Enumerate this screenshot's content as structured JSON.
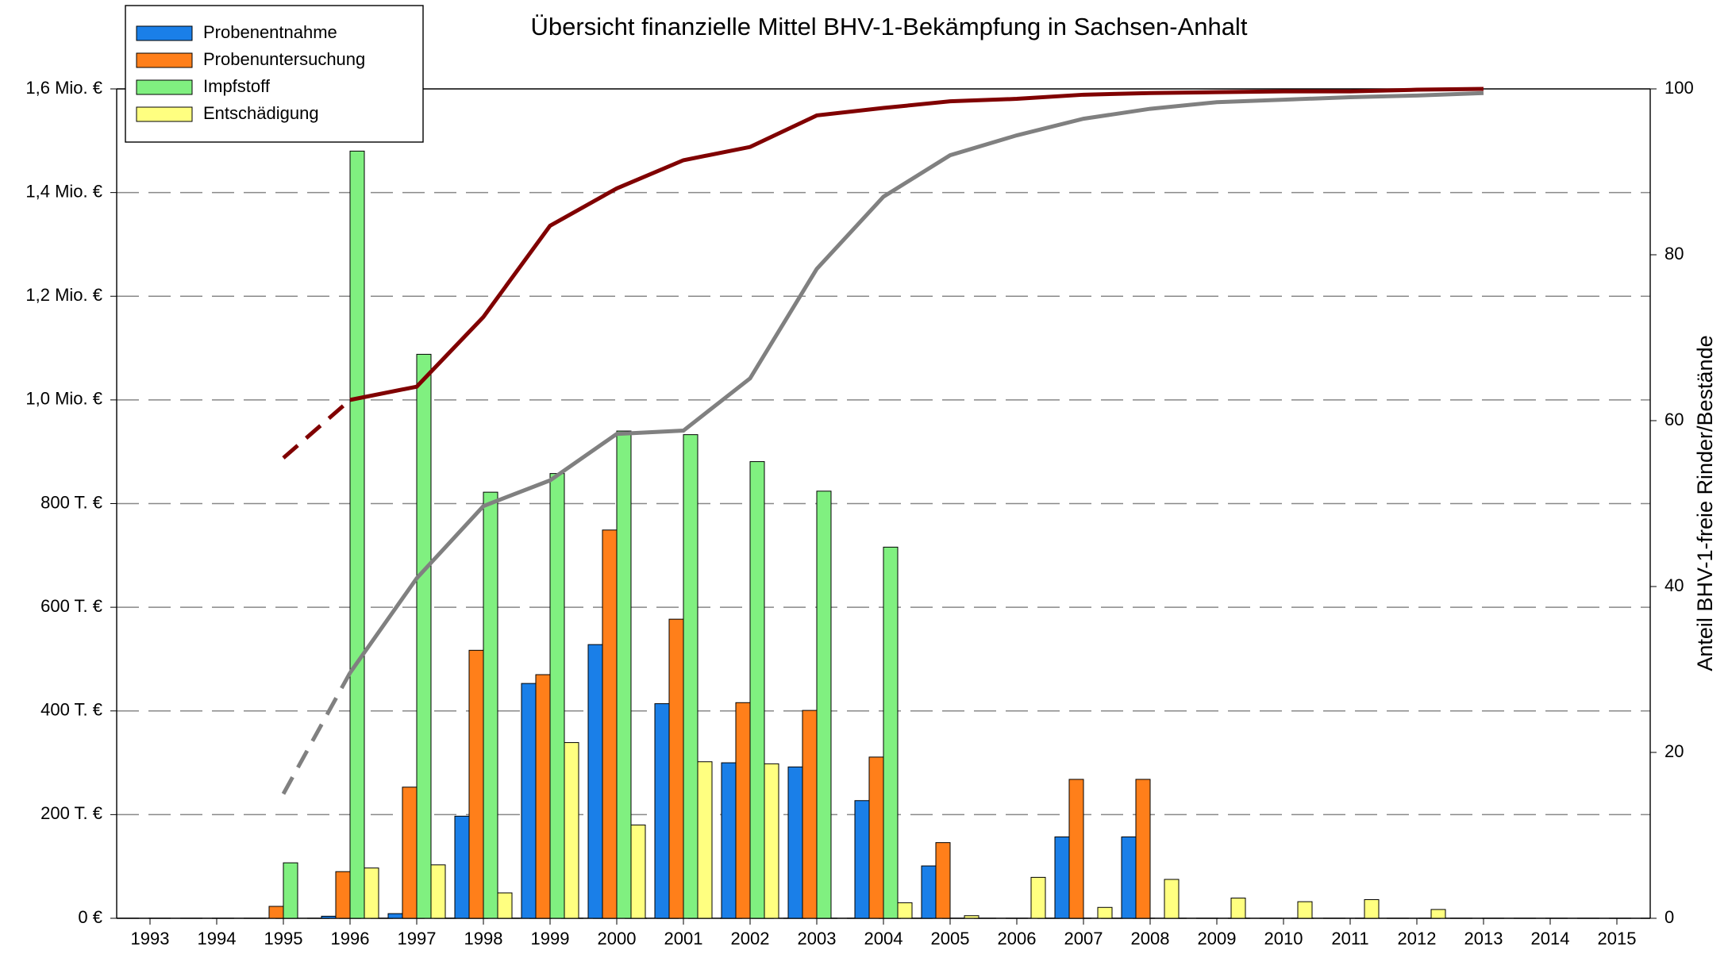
{
  "chart_data": {
    "type": "bar",
    "title": "Übersicht finanzielle Mittel BHV-1-Bekämpfung in Sachsen-Anhalt",
    "y2_label": "Anteil BHV-1-freie Rinder/Bestände",
    "categories": [
      "1993",
      "1994",
      "1995",
      "1996",
      "1997",
      "1998",
      "1999",
      "2000",
      "2001",
      "2002",
      "2003",
      "2004",
      "2005",
      "2006",
      "2007",
      "2008",
      "2009",
      "2010",
      "2011",
      "2012",
      "2013",
      "2014",
      "2015"
    ],
    "series": [
      {
        "name": "Probenentnahme",
        "color": "#1a7fe8",
        "values": [
          0,
          0,
          0,
          4000,
          9000,
          197000,
          453000,
          528000,
          414000,
          300000,
          292000,
          227000,
          101000,
          0,
          157000,
          157000,
          0,
          0,
          0,
          0,
          0,
          null,
          null
        ]
      },
      {
        "name": "Probenuntersuchung",
        "color": "#ff7f1a",
        "values": [
          0,
          0,
          23000,
          90000,
          253000,
          517000,
          470000,
          749000,
          577000,
          416000,
          401000,
          311000,
          146000,
          0,
          268000,
          268000,
          0,
          0,
          0,
          0,
          0,
          null,
          null
        ]
      },
      {
        "name": "Impfstoff",
        "color": "#80f080",
        "values": [
          0,
          0,
          107000,
          1480000,
          1088000,
          822000,
          858000,
          940000,
          933000,
          881000,
          824000,
          716000,
          0,
          0,
          0,
          0,
          0,
          0,
          0,
          0,
          0,
          null,
          null
        ]
      },
      {
        "name": "Entschädigung",
        "color": "#ffff80",
        "values": [
          0,
          0,
          0,
          97000,
          103000,
          49000,
          339000,
          180000,
          302000,
          298000,
          0,
          30000,
          5000,
          79000,
          21000,
          75000,
          39000,
          32000,
          36000,
          17000,
          0,
          null,
          null
        ]
      }
    ],
    "lines": [
      {
        "color": "#800000",
        "axis": "y2",
        "dashed_to_index": 3,
        "values": [
          null,
          null,
          55.5,
          62.5,
          64.1,
          72.5,
          83.5,
          88,
          91.4,
          93,
          96.8,
          97.7,
          98.5,
          98.8,
          99.3,
          99.5,
          99.6,
          99.7,
          99.7,
          99.9,
          100,
          null,
          null
        ]
      },
      {
        "color": "#808080",
        "axis": "y2",
        "dashed_to_index": 3,
        "values": [
          null,
          null,
          15,
          29.6,
          41,
          49.7,
          52.8,
          58.4,
          58.8,
          65.1,
          78.3,
          87,
          92,
          94.4,
          96.4,
          97.6,
          98.4,
          98.7,
          99,
          99.2,
          99.5,
          null,
          null
        ]
      }
    ],
    "ylim": [
      0,
      1600000
    ],
    "yticks": [
      {
        "value": 0,
        "label": "0 €"
      },
      {
        "value": 200000,
        "label": "200 T. €"
      },
      {
        "value": 400000,
        "label": "400 T. €"
      },
      {
        "value": 600000,
        "label": "600 T. €"
      },
      {
        "value": 800000,
        "label": "800 T. €"
      },
      {
        "value": 1000000,
        "label": "1,0 Mio. €"
      },
      {
        "value": 1200000,
        "label": "1,2 Mio. €"
      },
      {
        "value": 1400000,
        "label": "1,4 Mio. €"
      },
      {
        "value": 1600000,
        "label": "1,6 Mio. €"
      }
    ],
    "y2lim": [
      0,
      100
    ],
    "y2ticks": [
      0,
      20,
      40,
      60,
      80,
      100
    ],
    "grid": true,
    "legend": "top-left"
  }
}
